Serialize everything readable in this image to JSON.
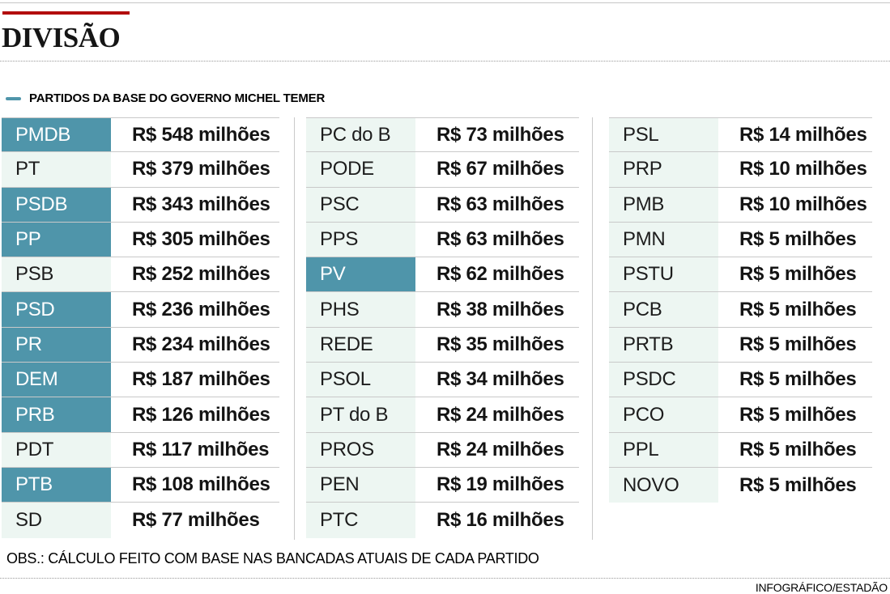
{
  "header": {
    "title": "DIVISÃO"
  },
  "legend": {
    "label": "PARTIDOS DA BASE DO GOVERNO MICHEL TEMER",
    "swatch_color": "#4f95aa"
  },
  "footer": {
    "note": "OBS.: CÁLCULO FEITO COM BASE NAS BANCADAS ATUAIS DE CADA PARTIDO",
    "credit": "INFOGRÁFICO/ESTADÃO"
  },
  "colors": {
    "accent_red": "#b20d0d",
    "base_party_bg": "#4f95aa",
    "base_party_text": "#ffffff",
    "other_party_bg": "#edf6f2",
    "other_party_text": "#1d1d1d",
    "row_border": "#c9c9c9",
    "value_text": "#141414"
  },
  "chart_data": {
    "type": "table",
    "title": "DIVISÃO",
    "legend": "PARTIDOS DA BASE DO GOVERNO MICHEL TEMER",
    "unit": "R$ milhões",
    "highlight_meaning": "partido da base do governo Michel Temer",
    "note": "OBS.: CÁLCULO FEITO COM BASE NAS BANCADAS ATUAIS DE CADA PARTIDO",
    "credit": "INFOGRÁFICO/ESTADÃO",
    "columns": [
      {
        "rows": [
          {
            "party": "PMDB",
            "value": 548,
            "value_label": "R$ 548 milhões",
            "base_governo": true
          },
          {
            "party": "PT",
            "value": 379,
            "value_label": "R$ 379 milhões",
            "base_governo": false
          },
          {
            "party": "PSDB",
            "value": 343,
            "value_label": "R$ 343 milhões",
            "base_governo": true
          },
          {
            "party": "PP",
            "value": 305,
            "value_label": "R$ 305 milhões",
            "base_governo": true
          },
          {
            "party": "PSB",
            "value": 252,
            "value_label": "R$ 252 milhões",
            "base_governo": false
          },
          {
            "party": "PSD",
            "value": 236,
            "value_label": "R$ 236 milhões",
            "base_governo": true
          },
          {
            "party": "PR",
            "value": 234,
            "value_label": "R$ 234 milhões",
            "base_governo": true
          },
          {
            "party": "DEM",
            "value": 187,
            "value_label": "R$ 187 milhões",
            "base_governo": true
          },
          {
            "party": "PRB",
            "value": 126,
            "value_label": "R$ 126 milhões",
            "base_governo": true
          },
          {
            "party": "PDT",
            "value": 117,
            "value_label": "R$ 117 milhões",
            "base_governo": false
          },
          {
            "party": "PTB",
            "value": 108,
            "value_label": "R$ 108 milhões",
            "base_governo": true
          },
          {
            "party": "SD",
            "value": 77,
            "value_label": "R$ 77 milhões",
            "base_governo": false
          }
        ]
      },
      {
        "rows": [
          {
            "party": "PC do B",
            "value": 73,
            "value_label": "R$ 73 milhões",
            "base_governo": false
          },
          {
            "party": "PODE",
            "value": 67,
            "value_label": "R$ 67 milhões",
            "base_governo": false
          },
          {
            "party": "PSC",
            "value": 63,
            "value_label": "R$ 63 milhões",
            "base_governo": false
          },
          {
            "party": "PPS",
            "value": 63,
            "value_label": "R$ 63 milhões",
            "base_governo": false
          },
          {
            "party": "PV",
            "value": 62,
            "value_label": "R$ 62 milhões",
            "base_governo": true
          },
          {
            "party": "PHS",
            "value": 38,
            "value_label": "R$ 38 milhões",
            "base_governo": false
          },
          {
            "party": "REDE",
            "value": 35,
            "value_label": "R$ 35 milhões",
            "base_governo": false
          },
          {
            "party": "PSOL",
            "value": 34,
            "value_label": "R$ 34 milhões",
            "base_governo": false
          },
          {
            "party": "PT do B",
            "value": 24,
            "value_label": "R$ 24 milhões",
            "base_governo": false
          },
          {
            "party": "PROS",
            "value": 24,
            "value_label": "R$ 24 milhões",
            "base_governo": false
          },
          {
            "party": "PEN",
            "value": 19,
            "value_label": "R$ 19 milhões",
            "base_governo": false
          },
          {
            "party": "PTC",
            "value": 16,
            "value_label": "R$ 16 milhões",
            "base_governo": false
          }
        ]
      },
      {
        "rows": [
          {
            "party": "PSL",
            "value": 14,
            "value_label": "R$ 14 milhões",
            "base_governo": false
          },
          {
            "party": "PRP",
            "value": 10,
            "value_label": "R$ 10 milhões",
            "base_governo": false
          },
          {
            "party": "PMB",
            "value": 10,
            "value_label": "R$ 10 milhões",
            "base_governo": false
          },
          {
            "party": "PMN",
            "value": 5,
            "value_label": "R$ 5 milhões",
            "base_governo": false
          },
          {
            "party": "PSTU",
            "value": 5,
            "value_label": "R$ 5 milhões",
            "base_governo": false
          },
          {
            "party": "PCB",
            "value": 5,
            "value_label": "R$ 5 milhões",
            "base_governo": false
          },
          {
            "party": "PRTB",
            "value": 5,
            "value_label": "R$ 5 milhões",
            "base_governo": false
          },
          {
            "party": "PSDC",
            "value": 5,
            "value_label": "R$ 5 milhões",
            "base_governo": false
          },
          {
            "party": "PCO",
            "value": 5,
            "value_label": "R$ 5 milhões",
            "base_governo": false
          },
          {
            "party": "PPL",
            "value": 5,
            "value_label": "R$ 5 milhões",
            "base_governo": false
          },
          {
            "party": "NOVO",
            "value": 5,
            "value_label": "R$ 5 milhões",
            "base_governo": false
          }
        ]
      }
    ]
  }
}
